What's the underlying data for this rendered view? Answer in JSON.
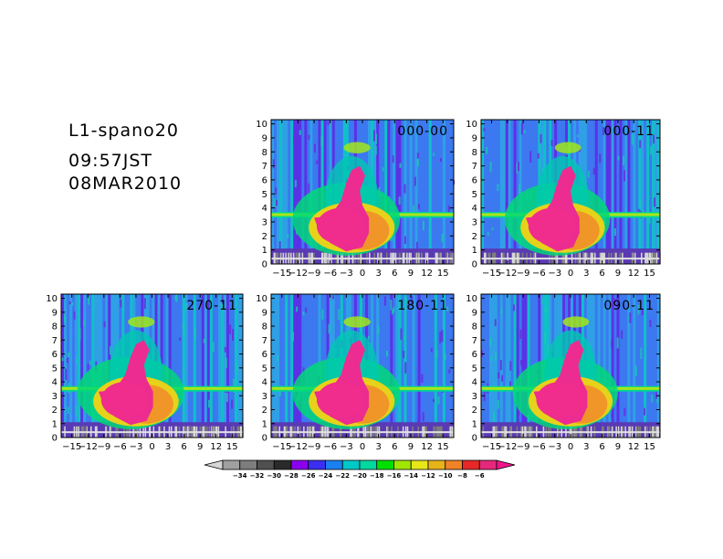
{
  "header": {
    "line1": "L1-spano20",
    "line2": "09:57JST",
    "line3": "08MAR2010"
  },
  "chart_data": [
    {
      "type": "heatmap",
      "title": "000-00",
      "xlim": [
        -17,
        17
      ],
      "ylim": [
        0,
        10.3
      ],
      "xticks": [
        "-15",
        "-12",
        "-9",
        "-6",
        "-3",
        "0",
        "3",
        "6",
        "9",
        "12",
        "15"
      ],
      "yticks": [
        "0",
        "1",
        "2",
        "3",
        "4",
        "5",
        "6",
        "7",
        "8",
        "9",
        "10"
      ]
    },
    {
      "type": "heatmap",
      "title": "000-11",
      "xlim": [
        -17,
        17
      ],
      "ylim": [
        0,
        10.3
      ],
      "xticks": [
        "-15",
        "-12",
        "-9",
        "-6",
        "-3",
        "0",
        "3",
        "6",
        "9",
        "12",
        "15"
      ],
      "yticks": [
        "0",
        "1",
        "2",
        "3",
        "4",
        "5",
        "6",
        "7",
        "8",
        "9",
        "10"
      ]
    },
    {
      "type": "heatmap",
      "title": "270-11",
      "xlim": [
        -17,
        17
      ],
      "ylim": [
        0,
        10.3
      ],
      "xticks": [
        "-15",
        "-12",
        "-9",
        "-6",
        "-3",
        "0",
        "3",
        "6",
        "9",
        "12",
        "15"
      ],
      "yticks": [
        "0",
        "1",
        "2",
        "3",
        "4",
        "5",
        "6",
        "7",
        "8",
        "9",
        "10"
      ]
    },
    {
      "type": "heatmap",
      "title": "180-11",
      "xlim": [
        -17,
        17
      ],
      "ylim": [
        0,
        10.3
      ],
      "xticks": [
        "-15",
        "-12",
        "-9",
        "-6",
        "-3",
        "0",
        "3",
        "6",
        "9",
        "12",
        "15"
      ],
      "yticks": [
        "0",
        "1",
        "2",
        "3",
        "4",
        "5",
        "6",
        "7",
        "8",
        "9",
        "10"
      ]
    },
    {
      "type": "heatmap",
      "title": "090-11",
      "xlim": [
        -17,
        17
      ],
      "ylim": [
        0,
        10.3
      ],
      "xticks": [
        "-15",
        "-12",
        "-9",
        "-6",
        "-3",
        "0",
        "3",
        "6",
        "9",
        "12",
        "15"
      ],
      "yticks": [
        "0",
        "1",
        "2",
        "3",
        "4",
        "5",
        "6",
        "7",
        "8",
        "9",
        "10"
      ]
    }
  ],
  "colorbar": {
    "labels": [
      "-34",
      "-32",
      "-30",
      "-28",
      "-26",
      "-24",
      "-22",
      "-20",
      "-18",
      "-16",
      "-14",
      "-12",
      "-10",
      "-8",
      "-6"
    ],
    "colors": [
      "#a0a0a0",
      "#7d7d7d",
      "#505050",
      "#2a2a2a",
      "#8a00ee",
      "#3a2ff0",
      "#1a7ff0",
      "#00c8c8",
      "#00d8a0",
      "#00e000",
      "#a0e600",
      "#e6e61a",
      "#e6b41a",
      "#f08228",
      "#e62828",
      "#e6287a"
    ],
    "under_color": "#d6d6d6",
    "over_color": "#f0148c"
  }
}
